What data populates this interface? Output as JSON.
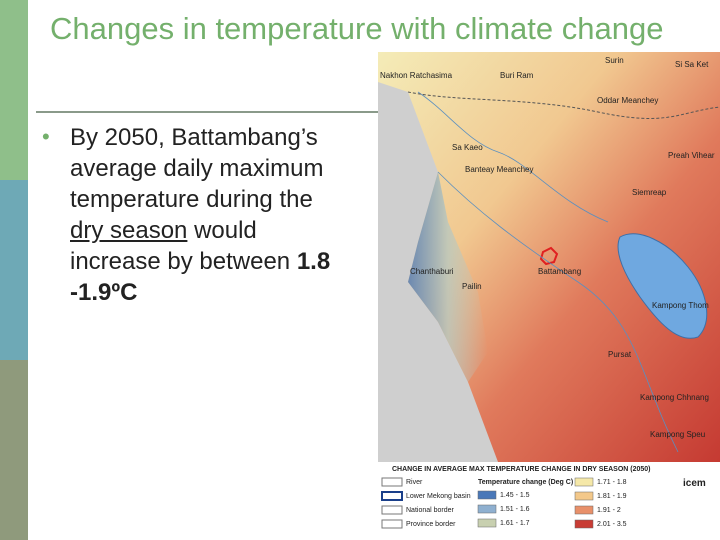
{
  "slide": {
    "title": "Changes in temperature with climate change",
    "bullet": [
      "By 2050, Battambang’s average daily maximum temperature during the ",
      "dry season",
      " would increase by between ",
      "1.8 -1.9ºC"
    ],
    "map": {
      "places": [
        "Nakhon Ratchasima",
        "Buri Ram",
        "Surin",
        "Si Sa Ket",
        "Oddar Meanchey",
        "Sa Kaeo",
        "Preah Vihear",
        "Banteay Meanchey",
        "Siemreap",
        "Battambang",
        "Chanthaburi",
        "Pailin",
        "Kampong Thom",
        "Pursat",
        "Kampong Chhnang",
        "Kampong Speu"
      ],
      "legend": {
        "title": "CHANGE IN AVERAGE MAX TEMPERATURE CHANGE IN DRY SEASON (2050)",
        "features": [
          "River",
          "Lower Mekong basin",
          "National border",
          "Province border"
        ],
        "scale_title": "Temperature change (Deg C)",
        "classes": [
          {
            "label": "1.45 - 1.5",
            "color": "#4a78b8"
          },
          {
            "label": "1.51 - 1.6",
            "color": "#8fb0d0"
          },
          {
            "label": "1.61 - 1.7",
            "color": "#c8d0b0"
          },
          {
            "label": "1.71 - 1.8",
            "color": "#f5e8a8"
          },
          {
            "label": "1.81 - 1.9",
            "color": "#f3c88a"
          },
          {
            "label": "1.91 - 2",
            "color": "#e8906a"
          },
          {
            "label": "2.01 - 3.5",
            "color": "#c83c34"
          }
        ],
        "logo": "icem"
      }
    }
  }
}
